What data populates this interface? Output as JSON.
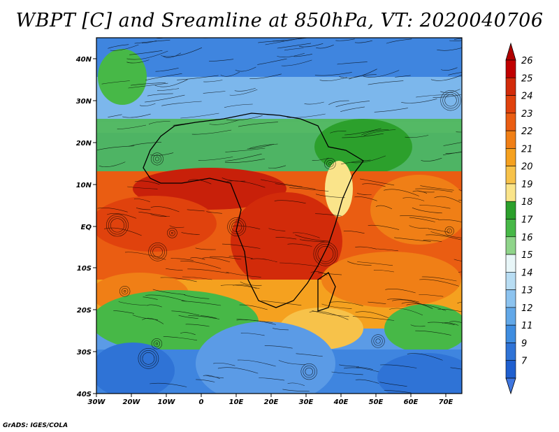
{
  "title": "WBPT [C] and Sreamline at 850hPa, VT: 2020040706",
  "credit": "GrADS: IGES/COLA",
  "lon_labels": [
    "30W",
    "20W",
    "10W",
    "0",
    "10E",
    "20E",
    "30E",
    "40E",
    "50E",
    "60E",
    "70E"
  ],
  "lat_labels": [
    "40N",
    "30N",
    "20N",
    "10N",
    "EQ",
    "10S",
    "20S",
    "30S",
    "40S"
  ],
  "colorbar": {
    "labels": [
      "26",
      "25",
      "24",
      "23",
      "22",
      "21",
      "20",
      "19",
      "18",
      "17",
      "16",
      "15",
      "14",
      "13",
      "12",
      "11",
      "9",
      "7"
    ],
    "colors": [
      "#c00000",
      "#d22b0a",
      "#e0420d",
      "#ea5d12",
      "#f07f16",
      "#f5a11f",
      "#f7c24a",
      "#fae48a",
      "#2ca02c",
      "#47b847",
      "#8fd48a",
      "#e8f6f8",
      "#b8ddf3",
      "#8cc3ef",
      "#62a8e8",
      "#3f8de0",
      "#2f73d6",
      "#1f5fcf"
    ]
  },
  "legend": {
    "min_arrow": "#3f76df",
    "max_arrow": "#b00000"
  }
}
